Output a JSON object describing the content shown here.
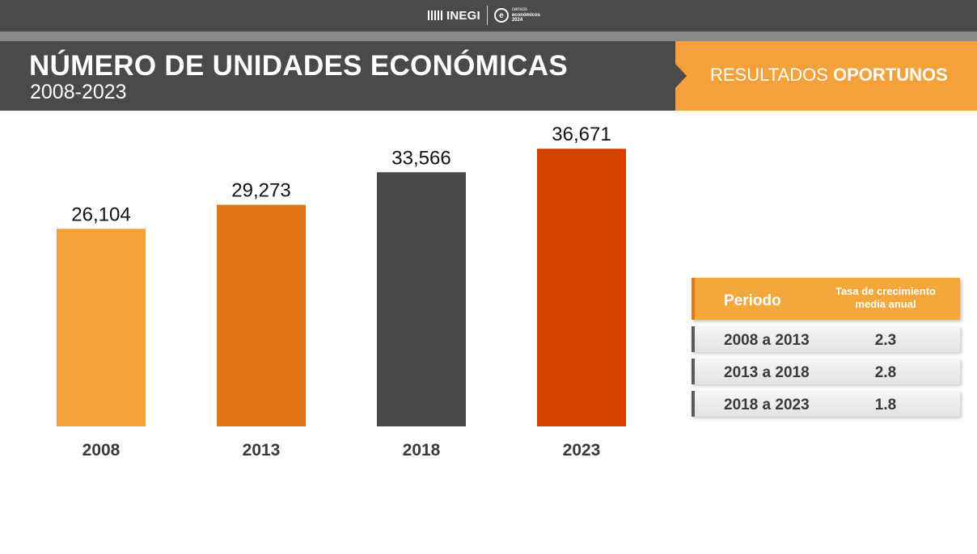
{
  "header": {
    "inegi": "INEGI",
    "censos_line1": "censos",
    "censos_line2": "económicos",
    "censos_year": "2024",
    "title": "NÚMERO DE UNIDADES ECONÓMICAS",
    "subtitle": "2008-2023",
    "badge_light": "RESULTADOS ",
    "badge_bold": "OPORTUNOS"
  },
  "chart_data": {
    "type": "bar",
    "categories": [
      "2008",
      "2013",
      "2018",
      "2023"
    ],
    "values": [
      26104,
      29273,
      33566,
      36671
    ],
    "value_labels": [
      "26,104",
      "29,273",
      "33,566",
      "36,671"
    ],
    "bar_colors": [
      "#f4a13a",
      "#e27516",
      "#484848",
      "#d44400"
    ],
    "title": "",
    "xlabel": "",
    "ylabel": "",
    "ylim": [
      0,
      40000
    ],
    "grid": false
  },
  "rates": {
    "header_periodo": "Periodo",
    "header_tasa_1": "Tasa de crecimiento",
    "header_tasa_2": "media anual",
    "rows": [
      {
        "period": "2008 a 2013",
        "value": "2.3"
      },
      {
        "period": "2013 a 2018",
        "value": "2.8"
      },
      {
        "period": "2018 a 2023",
        "value": "1.8"
      }
    ]
  }
}
